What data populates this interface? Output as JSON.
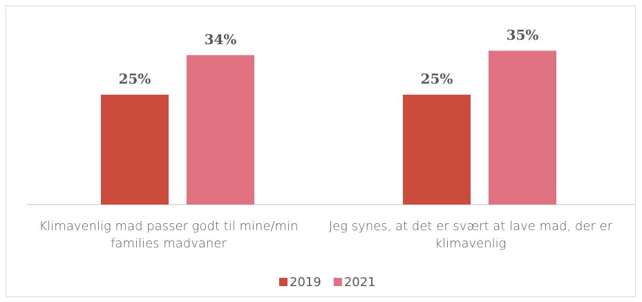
{
  "chart_data": {
    "type": "bar",
    "categories": [
      "Klimavenlig mad passer godt til mine/min families madvaner",
      "Jeg synes, at det er svært at lave mad, der er klimavenlig"
    ],
    "series": [
      {
        "name": "2019",
        "color": "#cb4b3d",
        "values": [
          25,
          25
        ],
        "value_labels": [
          "25%",
          "25%"
        ]
      },
      {
        "name": "2021",
        "color": "#e07282",
        "values": [
          34,
          35
        ],
        "value_labels": [
          "34%",
          "35%"
        ]
      }
    ],
    "legend": "bottom"
  }
}
